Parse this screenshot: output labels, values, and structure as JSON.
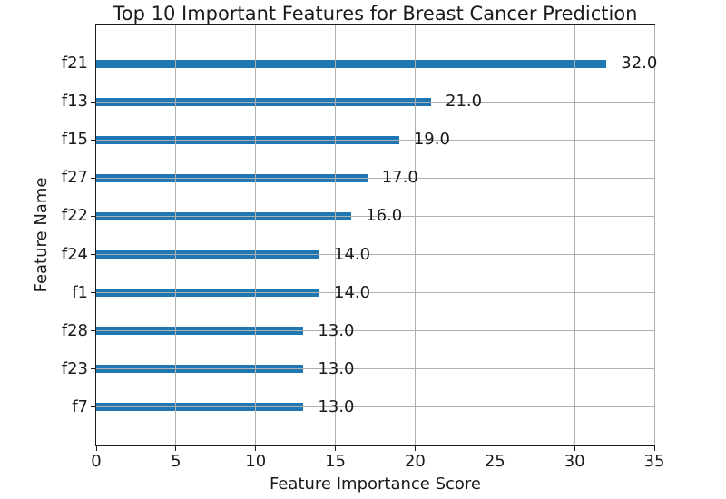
{
  "chart_data": {
    "type": "bar",
    "orientation": "horizontal",
    "title": "Top 10 Important Features for Breast Cancer Prediction",
    "xlabel": "Feature Importance Score",
    "ylabel": "Feature Name",
    "categories": [
      "f21",
      "f13",
      "f15",
      "f27",
      "f22",
      "f24",
      "f1",
      "f28",
      "f23",
      "f7"
    ],
    "values": [
      32.0,
      21.0,
      19.0,
      17.0,
      16.0,
      14.0,
      14.0,
      13.0,
      13.0,
      13.0
    ],
    "value_labels": [
      "32.0",
      "21.0",
      "19.0",
      "17.0",
      "16.0",
      "14.0",
      "14.0",
      "13.0",
      "13.0",
      "13.0"
    ],
    "xlim": [
      0,
      35
    ],
    "xticks": [
      0,
      5,
      10,
      15,
      20,
      25,
      30,
      35
    ],
    "grid": true,
    "legend": "none",
    "colors": {
      "bar": "#1f77b4",
      "grid": "#b0b0b0",
      "spine": "#1a1a1a",
      "text": "#1a1a1a",
      "background": "#ffffff"
    }
  }
}
